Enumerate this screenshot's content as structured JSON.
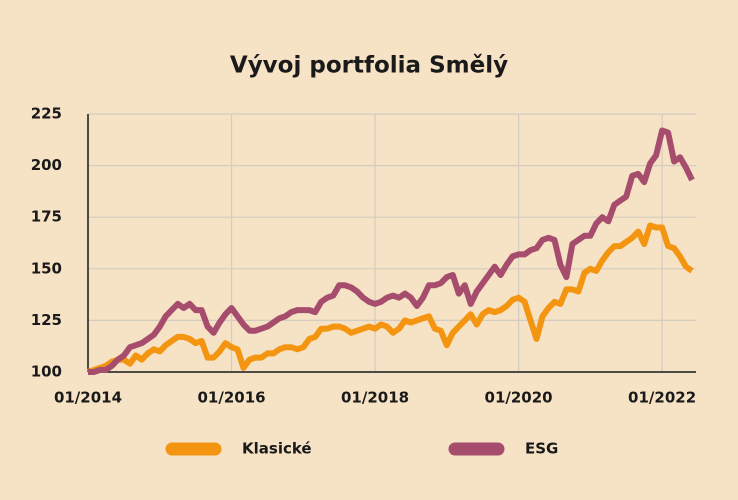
{
  "chart_data": {
    "type": "line",
    "title": "Vývoj portfolia Smělý",
    "x": [
      "01/2014",
      "02/2014",
      "03/2014",
      "04/2014",
      "05/2014",
      "06/2014",
      "07/2014",
      "08/2014",
      "09/2014",
      "10/2014",
      "11/2014",
      "12/2014",
      "01/2015",
      "02/2015",
      "03/2015",
      "04/2015",
      "05/2015",
      "06/2015",
      "07/2015",
      "08/2015",
      "09/2015",
      "10/2015",
      "11/2015",
      "12/2015",
      "01/2016",
      "02/2016",
      "03/2016",
      "04/2016",
      "05/2016",
      "06/2016",
      "07/2016",
      "08/2016",
      "09/2016",
      "10/2016",
      "11/2016",
      "12/2016",
      "01/2017",
      "02/2017",
      "03/2017",
      "04/2017",
      "05/2017",
      "06/2017",
      "07/2017",
      "08/2017",
      "09/2017",
      "10/2017",
      "11/2017",
      "12/2017",
      "01/2018",
      "02/2018",
      "03/2018",
      "04/2018",
      "05/2018",
      "06/2018",
      "07/2018",
      "08/2018",
      "09/2018",
      "10/2018",
      "11/2018",
      "12/2018",
      "01/2019",
      "02/2019",
      "03/2019",
      "04/2019",
      "05/2019",
      "06/2019",
      "07/2019",
      "08/2019",
      "09/2019",
      "10/2019",
      "11/2019",
      "12/2019",
      "01/2020",
      "02/2020",
      "03/2020",
      "04/2020",
      "05/2020",
      "06/2020",
      "07/2020",
      "08/2020",
      "09/2020",
      "10/2020",
      "11/2020",
      "12/2020",
      "01/2021",
      "02/2021",
      "03/2021",
      "04/2021",
      "05/2021",
      "06/2021",
      "07/2021",
      "08/2021",
      "09/2021",
      "10/2021",
      "11/2021",
      "12/2021",
      "01/2022",
      "02/2022",
      "03/2022",
      "04/2022",
      "05/2022",
      "06/2022"
    ],
    "series": [
      {
        "name": "Klasické",
        "color": "#f39511",
        "values": [
          100,
          101,
          102,
          103,
          105,
          106,
          106,
          104,
          108,
          106,
          109,
          111,
          110,
          113,
          115,
          117,
          117,
          116,
          114,
          115,
          107,
          107,
          110,
          114,
          112,
          111,
          102,
          106,
          107,
          107,
          109,
          109,
          111,
          112,
          112,
          111,
          112,
          116,
          117,
          121,
          121,
          122,
          122,
          121,
          119,
          120,
          121,
          122,
          121,
          123,
          122,
          119,
          121,
          125,
          124,
          125,
          126,
          127,
          121,
          120,
          113,
          119,
          122,
          125,
          128,
          123,
          128,
          130,
          129,
          130,
          132,
          135,
          136,
          134,
          125,
          116,
          127,
          131,
          134,
          133,
          140,
          140,
          139,
          148,
          150,
          149,
          154,
          158,
          161,
          161,
          163,
          165,
          168,
          162,
          171,
          170,
          170,
          161,
          160,
          156,
          151,
          149
        ]
      },
      {
        "name": "ESG",
        "color": "#a64d6e",
        "values": [
          100,
          100,
          101,
          101,
          103,
          106,
          108,
          112,
          113,
          114,
          116,
          118,
          122,
          127,
          130,
          133,
          131,
          133,
          130,
          130,
          122,
          119,
          124,
          128,
          131,
          127,
          123,
          120,
          120,
          121,
          122,
          124,
          126,
          127,
          129,
          130,
          130,
          130,
          129,
          134,
          136,
          137,
          142,
          142,
          141,
          139,
          136,
          134,
          133,
          134,
          136,
          137,
          136,
          138,
          136,
          132,
          136,
          142,
          142,
          143,
          146,
          147,
          138,
          142,
          133,
          139,
          143,
          147,
          151,
          147,
          152,
          156,
          157,
          157,
          159,
          160,
          164,
          165,
          164,
          152,
          146,
          162,
          164,
          166,
          166,
          172,
          175,
          173,
          181,
          183,
          185,
          195,
          196,
          192,
          201,
          205,
          217,
          216,
          202,
          204,
          199,
          193
        ]
      }
    ],
    "xticks": [
      "01/2014",
      "01/2016",
      "01/2018",
      "01/2020",
      "01/2022"
    ],
    "ylim": [
      100,
      225
    ],
    "yticks": [
      100,
      125,
      150,
      175,
      200,
      225
    ],
    "grid": true
  }
}
